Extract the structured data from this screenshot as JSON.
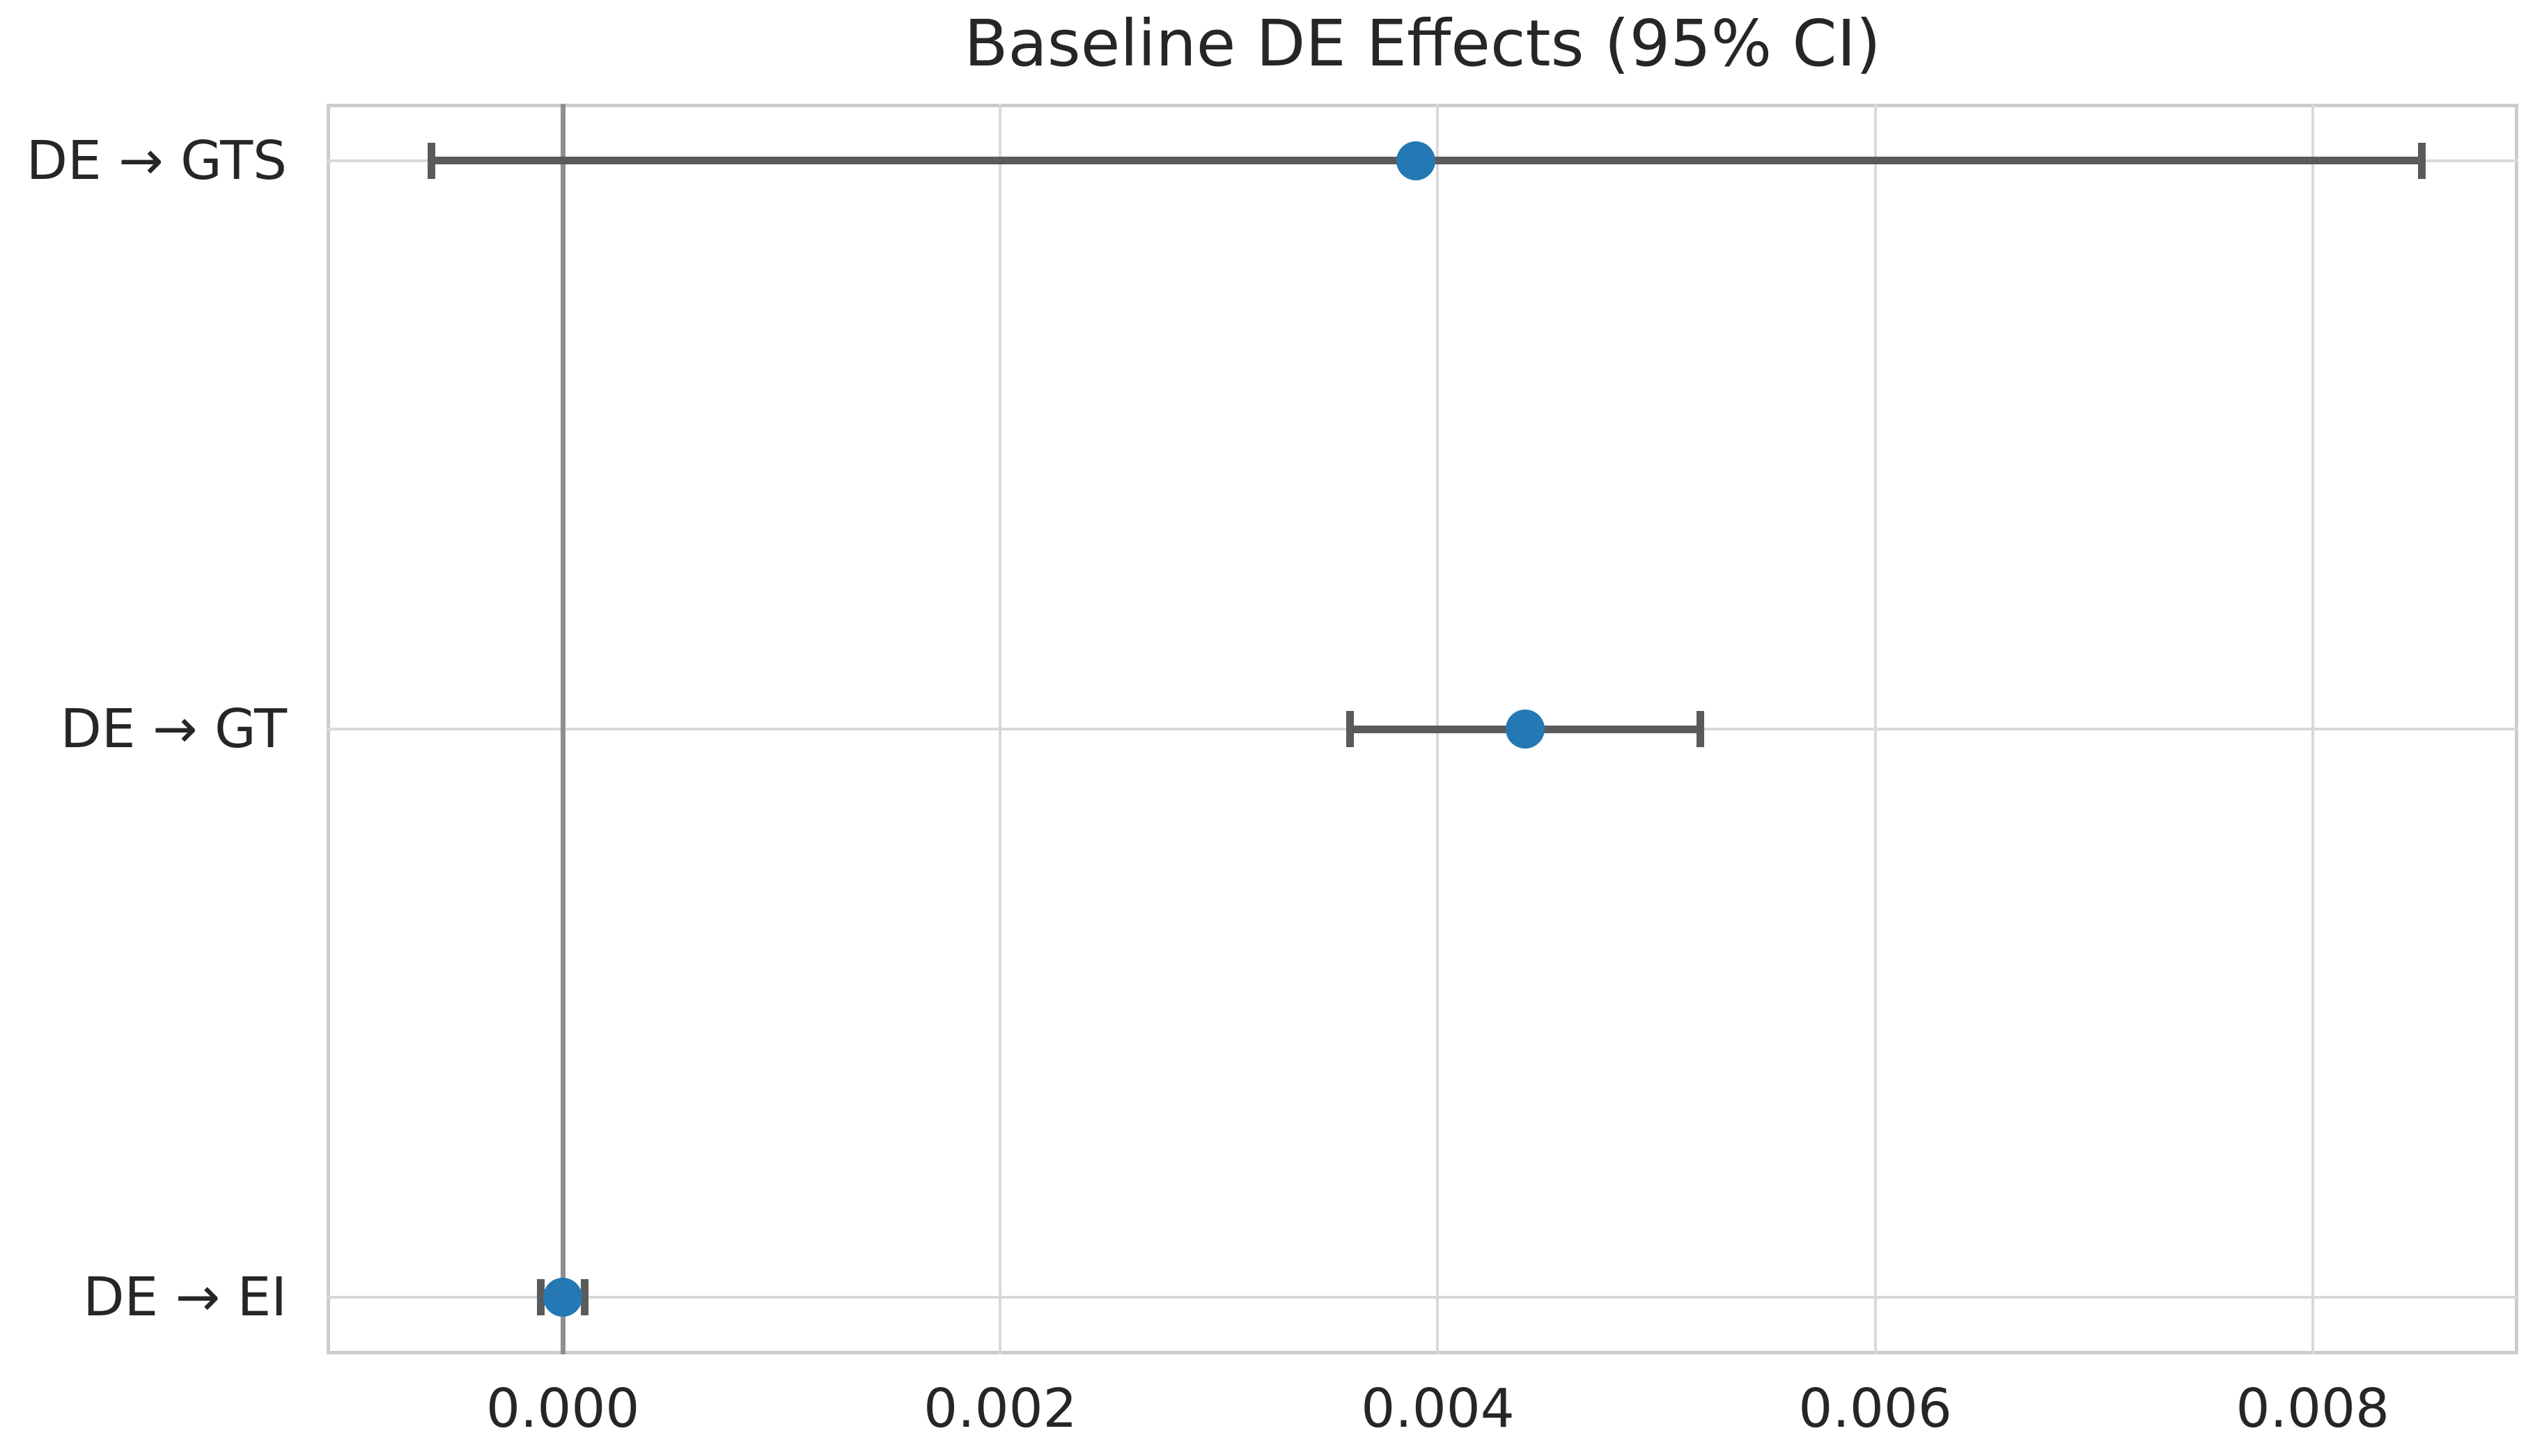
{
  "title": "Baseline DE Effects (95% CI)",
  "colors": {
    "marker": "#2478b4",
    "error_bar": "#5a5a5a",
    "grid": "#d9d9d9",
    "spine": "#cccccc",
    "zero_line": "#8f8f8f",
    "text": "#262626",
    "background": "#ffffff"
  },
  "chart_data": {
    "type": "scatter",
    "subtype": "horizontal-error-bar (forest plot)",
    "title": "Baseline DE Effects (95% CI)",
    "categories": [
      "DE → GTS",
      "DE → GT",
      "DE → EI"
    ],
    "series": [
      {
        "name": "estimate",
        "values": [
          0.0039,
          0.0044,
          0.0
        ]
      },
      {
        "name": "ci_low",
        "values": [
          -0.0006,
          0.0036,
          -0.0001
        ]
      },
      {
        "name": "ci_high",
        "values": [
          0.0085,
          0.0052,
          0.0001
        ]
      }
    ],
    "xticks": [
      0.0,
      0.002,
      0.004,
      0.006,
      0.008
    ],
    "xtick_labels": [
      "0.000",
      "0.002",
      "0.004",
      "0.006",
      "0.008"
    ],
    "xlabel": "",
    "ylabel": "",
    "xlim": [
      -0.00108,
      0.00894
    ],
    "zero_line": 0.0,
    "y_padding": 0.1,
    "grid": true,
    "legend": false
  }
}
